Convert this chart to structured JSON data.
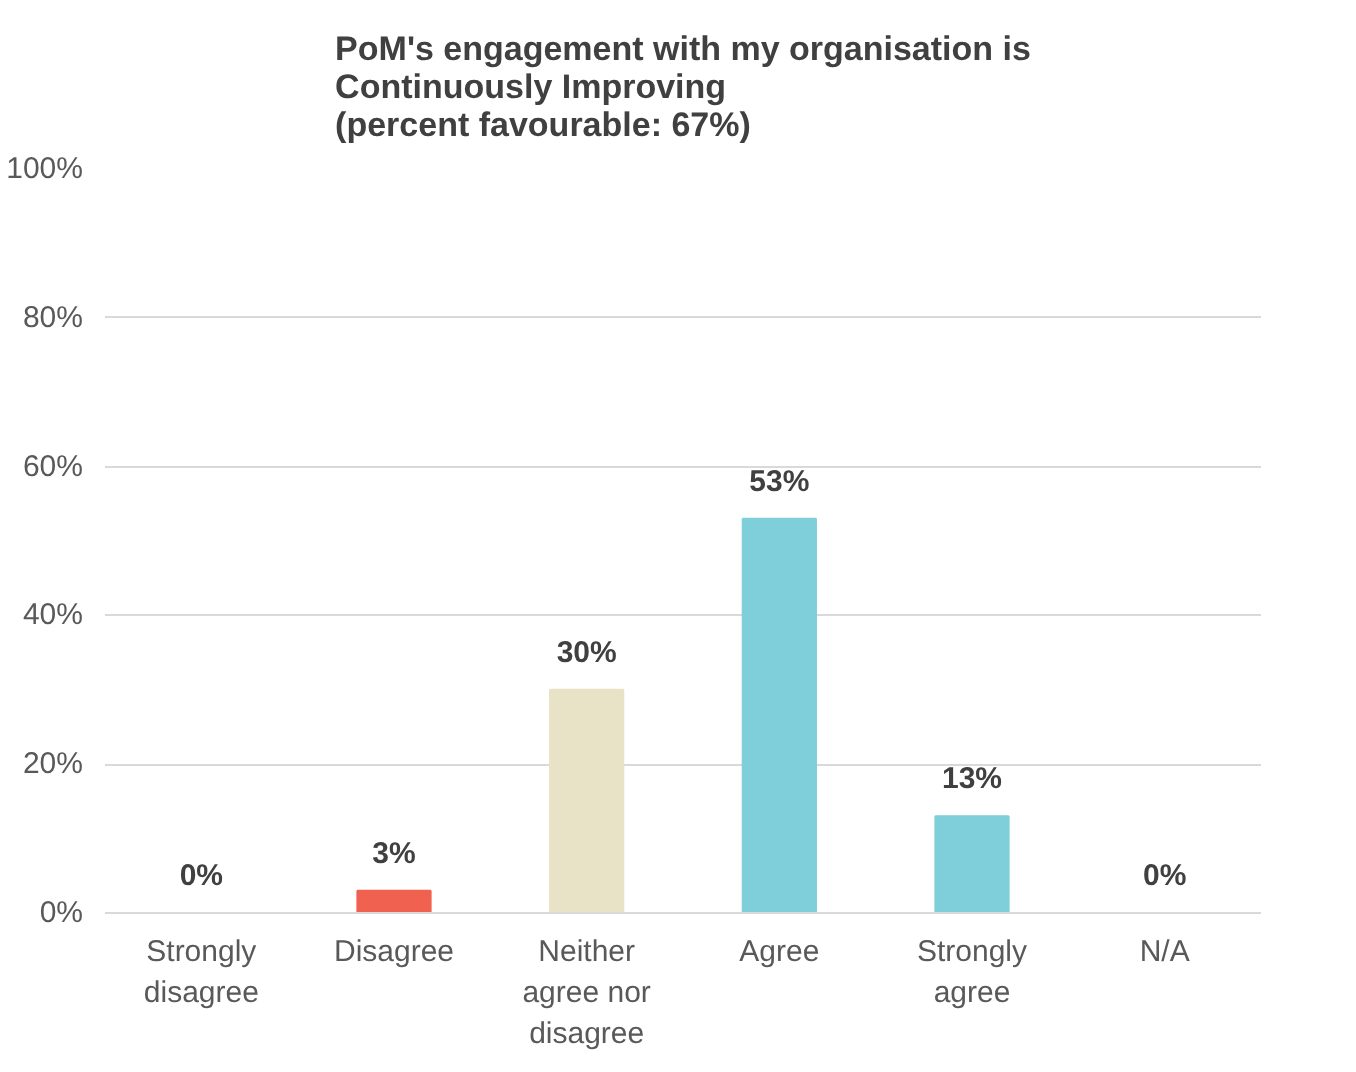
{
  "chart_data": {
    "type": "bar",
    "title": "PoM's engagement with my organisation is Continuously Improving",
    "subtitle": "(percent favourable: 67%)",
    "categories": [
      "Strongly disagree",
      "Disagree",
      "Neither agree nor disagree",
      "Agree",
      "Strongly agree",
      "N/A"
    ],
    "values": [
      0,
      3,
      30,
      53,
      13,
      0
    ],
    "colors": [
      "#7ecfd9",
      "#f0614f",
      "#e8e3c6",
      "#7ecfd9",
      "#7ecfd9",
      "#7ecfd9"
    ],
    "value_labels": [
      "0%",
      "3%",
      "30%",
      "53%",
      "13%",
      "0%"
    ],
    "ylim": [
      0,
      100
    ],
    "yticks": [
      {
        "value": 0,
        "label": "0%"
      },
      {
        "value": 20,
        "label": "20%"
      },
      {
        "value": 40,
        "label": "40%"
      },
      {
        "value": 60,
        "label": "60%"
      },
      {
        "value": 80,
        "label": "80%"
      },
      {
        "value": 100,
        "label": "100%"
      }
    ],
    "grid": "y"
  }
}
